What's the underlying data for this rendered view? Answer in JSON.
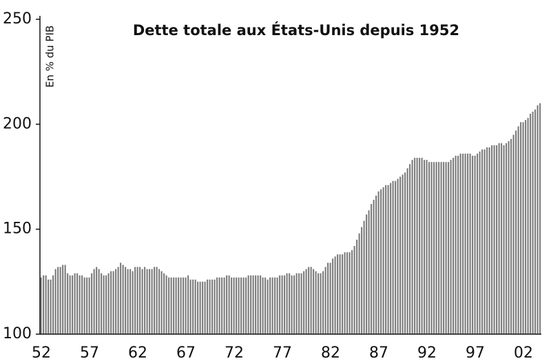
{
  "chart_data": {
    "type": "bar",
    "title": "Dette totale aux États-Unis depuis 1952",
    "y_label": "En % du PIB",
    "categories": [
      "52",
      null,
      null,
      null,
      null,
      null,
      null,
      null,
      null,
      null,
      null,
      null,
      null,
      null,
      null,
      null,
      null,
      null,
      null,
      null,
      "57",
      null,
      null,
      null,
      null,
      null,
      null,
      null,
      null,
      null,
      null,
      null,
      null,
      null,
      null,
      null,
      null,
      null,
      null,
      null,
      "62",
      null,
      null,
      null,
      null,
      null,
      null,
      null,
      null,
      null,
      null,
      null,
      null,
      null,
      null,
      null,
      null,
      null,
      null,
      null,
      "67",
      null,
      null,
      null,
      null,
      null,
      null,
      null,
      null,
      null,
      null,
      null,
      null,
      null,
      null,
      null,
      null,
      null,
      null,
      null,
      "72",
      null,
      null,
      null,
      null,
      null,
      null,
      null,
      null,
      null,
      null,
      null,
      null,
      null,
      null,
      null,
      null,
      null,
      null,
      null,
      "77",
      null,
      null,
      null,
      null,
      null,
      null,
      null,
      null,
      null,
      null,
      null,
      null,
      null,
      null,
      null,
      null,
      null,
      null,
      null,
      "82",
      null,
      null,
      null,
      null,
      null,
      null,
      null,
      null,
      null,
      null,
      null,
      null,
      null,
      null,
      null,
      null,
      null,
      null,
      null,
      "87",
      null,
      null,
      null,
      null,
      null,
      null,
      null,
      null,
      null,
      null,
      null,
      null,
      null,
      null,
      null,
      null,
      null,
      null,
      null,
      "92",
      null,
      null,
      null,
      null,
      null,
      null,
      null,
      null,
      null,
      null,
      null,
      null,
      null,
      null,
      null,
      null,
      null,
      null,
      null,
      "97",
      null,
      null,
      null,
      null,
      null,
      null,
      null,
      null,
      null,
      null,
      null,
      null,
      null,
      null,
      null,
      null,
      null,
      null,
      null,
      "02",
      null,
      null,
      null,
      null,
      null,
      null,
      null
    ],
    "values": [
      127,
      128,
      128,
      126,
      126,
      128,
      131,
      132,
      132,
      133,
      133,
      129,
      128,
      128,
      129,
      129,
      128,
      128,
      127,
      127,
      127,
      129,
      131,
      132,
      131,
      129,
      128,
      128,
      129,
      130,
      130,
      131,
      132,
      134,
      133,
      132,
      131,
      131,
      130,
      132,
      132,
      132,
      131,
      132,
      131,
      131,
      131,
      132,
      132,
      131,
      130,
      129,
      128,
      127,
      127,
      127,
      127,
      127,
      127,
      127,
      127,
      128,
      126,
      126,
      126,
      125,
      125,
      125,
      125,
      126,
      126,
      126,
      126,
      127,
      127,
      127,
      127,
      128,
      128,
      127,
      127,
      127,
      127,
      127,
      127,
      127,
      128,
      128,
      128,
      128,
      128,
      128,
      127,
      127,
      126,
      127,
      127,
      127,
      127,
      128,
      128,
      128,
      129,
      129,
      128,
      128,
      129,
      129,
      129,
      130,
      131,
      132,
      132,
      131,
      130,
      129,
      129,
      130,
      132,
      134,
      134,
      136,
      137,
      138,
      138,
      138,
      139,
      139,
      139,
      140,
      142,
      145,
      148,
      151,
      154,
      157,
      159,
      162,
      164,
      166,
      168,
      169,
      170,
      171,
      171,
      172,
      173,
      173,
      174,
      175,
      176,
      177,
      179,
      181,
      183,
      184,
      184,
      184,
      184,
      183,
      183,
      182,
      182,
      182,
      182,
      182,
      182,
      182,
      182,
      182,
      183,
      184,
      185,
      185,
      186,
      186,
      186,
      186,
      186,
      185,
      185,
      186,
      187,
      188,
      188,
      189,
      189,
      190,
      190,
      190,
      191,
      191,
      190,
      191,
      192,
      193,
      195,
      197,
      199,
      201,
      201,
      202,
      203,
      205,
      206,
      207,
      209,
      210
    ],
    "color": "#7a7a7a",
    "ylim": [
      100,
      250
    ],
    "yticks": [
      100,
      150,
      200,
      250
    ],
    "grid": false
  }
}
